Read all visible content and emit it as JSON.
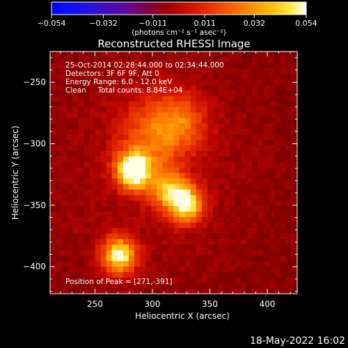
{
  "chart_data": {
    "type": "heatmap",
    "title": "Reconstructed RHESSI Image",
    "xlabel": "Heliocentric X (arcsec)",
    "ylabel": "Heliocentric Y (arcsec)",
    "xlim": [
      211,
      426
    ],
    "ylim": [
      -422,
      -225
    ],
    "x_ticks": [
      250,
      300,
      350,
      400
    ],
    "y_ticks": [
      -250,
      -300,
      -350,
      -400
    ],
    "colorbar": {
      "ticks": [
        "-0.054",
        "-0.032",
        "-0.011",
        "0.011",
        "0.032",
        "0.054"
      ],
      "tick_values": [
        -0.054,
        -0.032,
        -0.011,
        0.011,
        0.032,
        0.054
      ],
      "range": [
        -0.054,
        0.054
      ],
      "units_label": "(photons cm⁻² s⁻¹ asec⁻²)"
    },
    "annotations": {
      "time_range": "25-Oct-2014 02:28:44.000 to 02:34:44.000",
      "detectors": "Detectors: 3F 6F 9F, Att 0",
      "energy": "Energy Range: 6.0 - 12.0 keV",
      "clean": "Clean     Total counts: 8.84E+04",
      "peak": "Position of Peak = [271,-391]"
    },
    "peak": {
      "x": 271,
      "y": -391
    },
    "sources": [
      {
        "x": 271,
        "y": -391,
        "sigma": 11,
        "amplitude": 1.0
      },
      {
        "x": 283,
        "y": -322,
        "sigma": 11,
        "amplitude": 0.92
      },
      {
        "x": 330,
        "y": -349,
        "sigma": 11,
        "amplitude": 0.8
      },
      {
        "x": 313,
        "y": -337,
        "sigma": 12,
        "amplitude": 0.55
      },
      {
        "x": 302,
        "y": -292,
        "sigma": 22,
        "amplitude": 0.45
      },
      {
        "x": 327,
        "y": -280,
        "sigma": 16,
        "amplitude": 0.35
      }
    ],
    "background_level": 0.22
  },
  "footer": {
    "date": "18-May-2022 16:02"
  }
}
